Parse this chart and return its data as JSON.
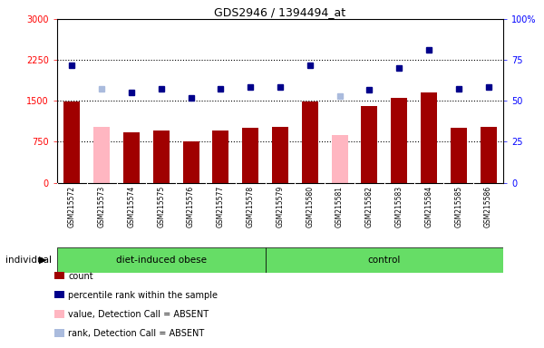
{
  "title": "GDS2946 / 1394494_at",
  "samples": [
    "GSM215572",
    "GSM215573",
    "GSM215574",
    "GSM215575",
    "GSM215576",
    "GSM215577",
    "GSM215578",
    "GSM215579",
    "GSM215580",
    "GSM215581",
    "GSM215582",
    "GSM215583",
    "GSM215584",
    "GSM215585",
    "GSM215586"
  ],
  "counts": [
    1490,
    0,
    920,
    960,
    760,
    960,
    1010,
    1020,
    1490,
    0,
    1400,
    1560,
    1660,
    1000,
    1030
  ],
  "absent_values": [
    0,
    1020,
    0,
    0,
    0,
    0,
    0,
    0,
    0,
    870,
    0,
    0,
    0,
    0,
    0
  ],
  "ranks_pct": [
    71.7,
    0,
    55.0,
    57.3,
    51.7,
    57.3,
    58.3,
    58.7,
    71.7,
    0,
    56.7,
    70.0,
    81.0,
    57.3,
    58.7
  ],
  "absent_ranks_pct": [
    0,
    57.3,
    0,
    0,
    0,
    0,
    0,
    0,
    0,
    52.7,
    0,
    0,
    0,
    0,
    0
  ],
  "absent_samples": [
    1,
    9
  ],
  "group1_label": "diet-induced obese",
  "group2_label": "control",
  "group1_count": 7,
  "group2_count": 8,
  "ylim_left": [
    0,
    3000
  ],
  "ylim_right": [
    0,
    100
  ],
  "yticks_left": [
    0,
    750,
    1500,
    2250,
    3000
  ],
  "yticks_right": [
    0,
    25,
    50,
    75,
    100
  ],
  "bar_color": "#A00000",
  "absent_bar_color": "#FFB6C1",
  "dot_color": "#00008B",
  "absent_dot_color": "#AABBDD",
  "plot_bg": "#ffffff",
  "label_bg": "#C8C8C8",
  "group_bg": "#66DD66",
  "legend_items": [
    "count",
    "percentile rank within the sample",
    "value, Detection Call = ABSENT",
    "rank, Detection Call = ABSENT"
  ],
  "legend_colors": [
    "#A00000",
    "#00008B",
    "#FFB6C1",
    "#AABBDD"
  ]
}
